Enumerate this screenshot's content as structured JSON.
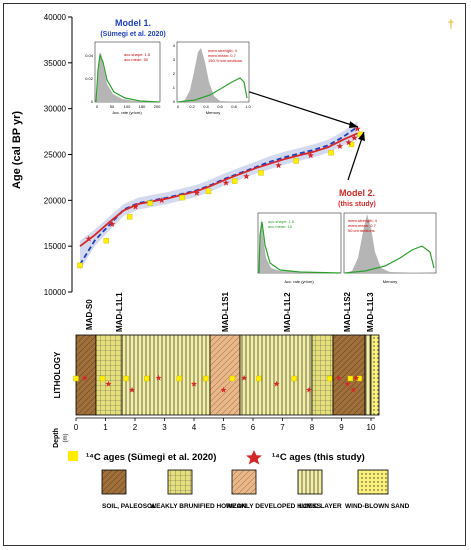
{
  "chart_data": [
    {
      "type": "line",
      "ylabel": "Age (cal BP yr)",
      "ylim": [
        10000,
        40000
      ],
      "yticks": [
        "10000",
        "15000",
        "20000",
        "25000",
        "30000",
        "35000",
        "40000"
      ],
      "xlim": [
        0,
        10
      ],
      "series": [
        {
          "name": "Model 2. (this study)",
          "color": "#d62728",
          "x": [
            0,
            0.5,
            1,
            1.5,
            2,
            2.5,
            3,
            3.5,
            4,
            4.5,
            5,
            5.5,
            6,
            6.5,
            7,
            7.5,
            8,
            8.5,
            9,
            9.5
          ],
          "y": [
            15000,
            16200,
            17600,
            18900,
            19600,
            19900,
            20200,
            20600,
            21000,
            21600,
            22300,
            22900,
            23500,
            24000,
            24500,
            24900,
            25300,
            25800,
            26600,
            27300
          ]
        },
        {
          "name": "Model 1. (Sümegi et al. 2020)",
          "color": "#1f3fbf",
          "x": [
            0,
            0.5,
            1,
            1.5,
            2,
            2.5,
            3,
            3.5,
            4,
            4.5,
            5,
            5.5,
            6,
            6.5,
            7,
            7.5,
            8,
            8.5,
            9,
            9.5
          ],
          "y": [
            13000,
            15600,
            17300,
            19000,
            19700,
            20000,
            20300,
            20700,
            21100,
            21700,
            22400,
            23000,
            23600,
            24200,
            24700,
            25100,
            25500,
            26000,
            26900,
            28000
          ]
        }
      ],
      "points_sumegi": {
        "x": [
          0,
          0.9,
          1.7,
          2.4,
          3.5,
          4.4,
          5.3,
          6.2,
          7.4,
          8.6,
          9.3,
          9.6
        ],
        "y": [
          12900,
          15600,
          18200,
          19700,
          20300,
          21000,
          22100,
          23000,
          24300,
          25200,
          26100,
          27200
        ]
      },
      "points_this_study": {
        "x": [
          0.3,
          1.1,
          1.9,
          2.8,
          4.0,
          5.0,
          5.7,
          6.8,
          7.9,
          8.9,
          9.2,
          9.4,
          9.5
        ],
        "y": [
          15800,
          17400,
          19300,
          20000,
          20800,
          21900,
          22600,
          23800,
          24900,
          25900,
          26300,
          26800,
          27800
        ]
      }
    },
    {
      "type": "line",
      "title": "Model 1.",
      "subtitle": "(Sümegi et al. 2020)",
      "xlabel": "Acc. rate (yr/cm)",
      "x_ticks": [
        "0",
        "50",
        "100",
        "150",
        "200"
      ],
      "y_ticks": [
        "0",
        "0.02",
        "0.04"
      ],
      "note1": "acc.shape: 1.5",
      "note2": "acc.mean: 50"
    },
    {
      "type": "area",
      "xlabel": "Memory",
      "x_ticks": [
        "0",
        "0.2",
        "0.4",
        "0.6",
        "0.8",
        "1.0"
      ],
      "y_ticks": [
        "0",
        "1",
        "2",
        "3",
        "4"
      ],
      "note1": "mem.strength: 4",
      "note2": "mem.mean: 0.7",
      "note3": "150 Yr/cm sections"
    },
    {
      "type": "line",
      "title": "Model 2.",
      "subtitle": "(this study)",
      "xlabel": "Acc. rate (yr/cm)",
      "note1": "acc.shape: 1.5",
      "note2": "acc.mean: 10"
    },
    {
      "type": "area",
      "xlabel": "Memory",
      "note1": "mem.strength: 4",
      "note2": "mem.mean: 0.7",
      "note3": "50 cm sections"
    }
  ],
  "dagger": "†",
  "lithology": {
    "label": "LITHOLOGY",
    "depth_label": "Depth",
    "depth_unit": "(m)",
    "depth_ticks": [
      "0",
      "1",
      "2",
      "3",
      "4",
      "5",
      "6",
      "7",
      "8",
      "9",
      "10"
    ],
    "units": [
      "MAD-S0",
      "MAD-L1L1",
      "MAD-L1S1",
      "MAD-L1L2",
      "MAD-L1S2",
      "MAD-L1L3"
    ]
  },
  "legend": {
    "sumegi": "¹⁴C ages (Sümegi et al. 2020)",
    "this_study": "¹⁴C ages (this study)",
    "soil": "SOIL, PALEOSOL",
    "brunified": "WEAKLY BRUNIFIED HORIZON",
    "humic": "WEAKLY DEVELOPED HUMIC LAYER",
    "loess": "LOESS",
    "sand": "WIND-BLOWN SAND"
  },
  "colors": {
    "model1": "#1f3fbf",
    "model2": "#d62728",
    "sumegi_marker": "#ffee00",
    "soil": "#a0703a",
    "brunified": "#e6e07a",
    "humic": "#e8b88a",
    "loess": "#f4f0a0",
    "sand": "#fbf07a"
  }
}
